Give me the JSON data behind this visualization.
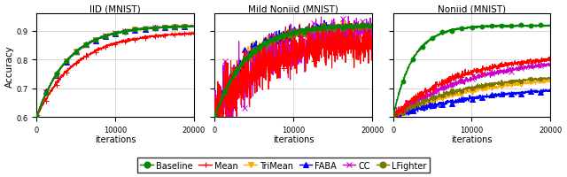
{
  "titles": [
    "IID (MNIST)",
    "Mild Noniid (MNIST)",
    "Noniid (MNIST)"
  ],
  "xlabel": "iterations",
  "ylabel": "Accuracy",
  "xlim": [
    0,
    20000
  ],
  "ylim": [
    0.6,
    0.96
  ],
  "yticks": [
    0.6,
    0.7,
    0.8,
    0.9
  ],
  "xticks": [
    0,
    10000,
    20000
  ],
  "series": {
    "Baseline": {
      "color": "#008800",
      "marker": "o",
      "markersize": 3.5,
      "lw": 1.2,
      "zorder": 6
    },
    "Mean": {
      "color": "#ff0000",
      "marker": "+",
      "markersize": 4,
      "lw": 0.8,
      "zorder": 4
    },
    "TriMean": {
      "color": "#ffaa00",
      "marker": "v",
      "markersize": 4,
      "lw": 0.8,
      "zorder": 3
    },
    "FABA": {
      "color": "#0000ff",
      "marker": "^",
      "markersize": 4,
      "lw": 0.8,
      "zorder": 3
    },
    "CC": {
      "color": "#cc00cc",
      "marker": "x",
      "markersize": 4,
      "lw": 0.8,
      "zorder": 3
    },
    "LFighter": {
      "color": "#777700",
      "marker": "o",
      "markersize": 3,
      "lw": 0.8,
      "zorder": 3
    }
  },
  "panels": {
    "iid": {
      "Baseline": {
        "converge": 0.918,
        "conv_speed": 5.0,
        "noise": 0.001,
        "final_noise": 0.001
      },
      "Mean": {
        "converge": 0.896,
        "conv_speed": 4.0,
        "noise": 0.002,
        "final_noise": 0.002
      },
      "TriMean": {
        "converge": 0.918,
        "conv_speed": 5.0,
        "noise": 0.001,
        "final_noise": 0.001
      },
      "FABA": {
        "converge": 0.918,
        "conv_speed": 5.0,
        "noise": 0.001,
        "final_noise": 0.001
      },
      "CC": {
        "converge": 0.918,
        "conv_speed": 5.0,
        "noise": 0.001,
        "final_noise": 0.001
      },
      "LFighter": {
        "converge": 0.918,
        "conv_speed": 5.0,
        "noise": 0.001,
        "final_noise": 0.001
      }
    },
    "mild": {
      "Baseline": {
        "converge": 0.92,
        "conv_speed": 5.0,
        "noise": 0.003,
        "final_noise": 0.003
      },
      "Mean": {
        "converge": 0.87,
        "conv_speed": 3.5,
        "noise": 0.025,
        "final_noise": 0.025
      },
      "TriMean": {
        "converge": 0.915,
        "conv_speed": 5.0,
        "noise": 0.008,
        "final_noise": 0.008
      },
      "FABA": {
        "converge": 0.915,
        "conv_speed": 5.0,
        "noise": 0.008,
        "final_noise": 0.008
      },
      "CC": {
        "converge": 0.91,
        "conv_speed": 3.0,
        "noise": 0.04,
        "final_noise": 0.02
      },
      "LFighter": {
        "converge": 0.915,
        "conv_speed": 5.0,
        "noise": 0.005,
        "final_noise": 0.005
      }
    },
    "noniid": {
      "Baseline": {
        "converge": 0.918,
        "conv_speed": 8.0,
        "noise": 0.001,
        "final_noise": 0.001
      },
      "Mean": {
        "converge": 0.818,
        "conv_speed": 2.5,
        "noise": 0.005,
        "final_noise": 0.003
      },
      "TriMean": {
        "converge": 0.745,
        "conv_speed": 2.0,
        "noise": 0.004,
        "final_noise": 0.002
      },
      "FABA": {
        "converge": 0.71,
        "conv_speed": 1.8,
        "noise": 0.004,
        "final_noise": 0.002
      },
      "CC": {
        "converge": 0.812,
        "conv_speed": 2.0,
        "noise": 0.005,
        "final_noise": 0.003
      },
      "LFighter": {
        "converge": 0.752,
        "conv_speed": 2.2,
        "noise": 0.004,
        "final_noise": 0.002
      }
    }
  },
  "legend_order": [
    "Baseline",
    "Mean",
    "TriMean",
    "FABA",
    "CC",
    "LFighter"
  ]
}
